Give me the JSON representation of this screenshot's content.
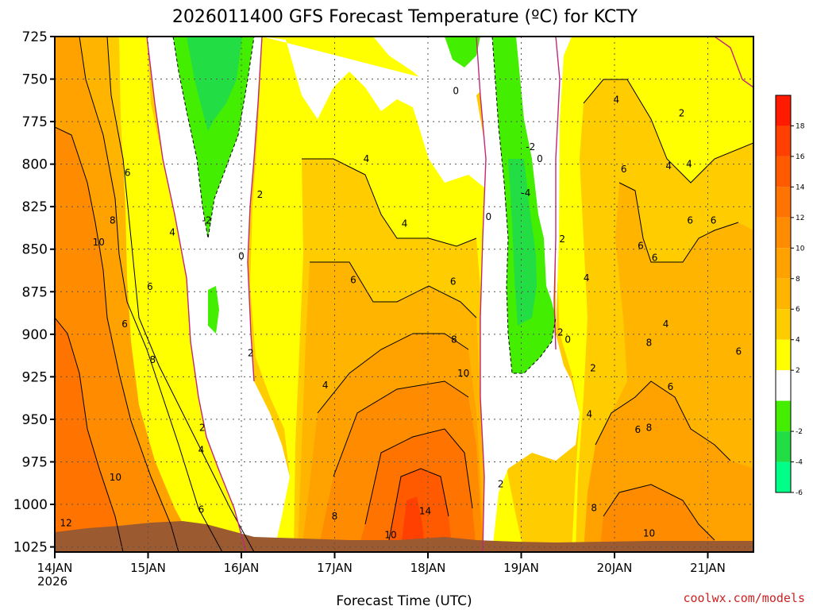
{
  "chart_data": {
    "type": "heatmap",
    "title": "2026011400 GFS Forecast Temperature (ºC) for KCTY",
    "xlabel": "Forecast Time (UTC)",
    "ylabel": "",
    "credit": "coolwx.com/models",
    "y_axis": {
      "ticks": [
        "725",
        "750",
        "775",
        "800",
        "825",
        "850",
        "875",
        "900",
        "925",
        "950",
        "975",
        "1000",
        "1025"
      ],
      "range": [
        725,
        1028
      ],
      "inverted": true
    },
    "x_axis": {
      "ticks": [
        "14JAN",
        "15JAN",
        "16JAN",
        "17JAN",
        "18JAN",
        "19JAN",
        "20JAN",
        "21JAN"
      ],
      "year_label": "2026",
      "range_days": [
        0,
        7.45
      ]
    },
    "grid": true,
    "colorbar": {
      "position": "right",
      "labels": [
        "18",
        "16",
        "14",
        "12",
        "10",
        "8",
        "6",
        "4",
        "2",
        "-2",
        "-4",
        "-6"
      ],
      "bins": [
        {
          "range": [
            18,
            20
          ],
          "color": "#ff1a00"
        },
        {
          "range": [
            16,
            18
          ],
          "color": "#ff4000"
        },
        {
          "range": [
            14,
            16
          ],
          "color": "#ff5a00"
        },
        {
          "range": [
            12,
            14
          ],
          "color": "#ff7300"
        },
        {
          "range": [
            10,
            12
          ],
          "color": "#ff8c00"
        },
        {
          "range": [
            8,
            10
          ],
          "color": "#ffa200"
        },
        {
          "range": [
            6,
            8
          ],
          "color": "#ffb400"
        },
        {
          "range": [
            4,
            6
          ],
          "color": "#ffcc00"
        },
        {
          "range": [
            2,
            4
          ],
          "color": "#ffff00"
        },
        {
          "range": [
            -2,
            2
          ],
          "color": "#ffffff"
        },
        {
          "range": [
            -4,
            -2
          ],
          "color": "#44ee00"
        },
        {
          "range": [
            -6,
            -4
          ],
          "color": "#22dd44"
        },
        {
          "range": [
            -8,
            -6
          ],
          "color": "#00ff88"
        }
      ]
    },
    "contour_labels": [
      {
        "day": 0.12,
        "p": 1011,
        "v": "12"
      },
      {
        "day": 0.65,
        "p": 984,
        "v": "10"
      },
      {
        "day": 0.47,
        "p": 846,
        "v": "10"
      },
      {
        "day": 0.62,
        "p": 833,
        "v": "8"
      },
      {
        "day": 0.78,
        "p": 805,
        "v": "6"
      },
      {
        "day": 0.75,
        "p": 894,
        "v": "6"
      },
      {
        "day": 1.05,
        "p": 915,
        "v": "8"
      },
      {
        "day": 1.02,
        "p": 872,
        "v": "6"
      },
      {
        "day": 1.26,
        "p": 840,
        "v": "4"
      },
      {
        "day": 1.58,
        "p": 955,
        "v": "2"
      },
      {
        "day": 1.57,
        "p": 1003,
        "v": "6"
      },
      {
        "day": 1.57,
        "p": 968,
        "v": "4"
      },
      {
        "day": 1.63,
        "p": 833,
        "v": "-2"
      },
      {
        "day": 2.0,
        "p": 854,
        "v": "0"
      },
      {
        "day": 2.1,
        "p": 911,
        "v": "2"
      },
      {
        "day": 2.2,
        "p": 818,
        "v": "2"
      },
      {
        "day": 2.9,
        "p": 930,
        "v": "4"
      },
      {
        "day": 3.2,
        "p": 868,
        "v": "6"
      },
      {
        "day": 3.34,
        "p": 797,
        "v": "4"
      },
      {
        "day": 3.0,
        "p": 1007,
        "v": "8"
      },
      {
        "day": 3.6,
        "p": 1018,
        "v": "10"
      },
      {
        "day": 3.97,
        "p": 1004,
        "v": "14"
      },
      {
        "day": 3.75,
        "p": 835,
        "v": "4"
      },
      {
        "day": 4.27,
        "p": 869,
        "v": "6"
      },
      {
        "day": 4.28,
        "p": 903,
        "v": "8"
      },
      {
        "day": 4.38,
        "p": 923,
        "v": "10"
      },
      {
        "day": 4.3,
        "p": 757,
        "v": "0"
      },
      {
        "day": 4.65,
        "p": 831,
        "v": "0"
      },
      {
        "day": 4.78,
        "p": 988,
        "v": "2"
      },
      {
        "day": 5.1,
        "p": 790,
        "v": "-2"
      },
      {
        "day": 5.2,
        "p": 797,
        "v": "0"
      },
      {
        "day": 5.05,
        "p": 817,
        "v": "-4"
      },
      {
        "day": 5.44,
        "p": 844,
        "v": "2"
      },
      {
        "day": 5.42,
        "p": 899,
        "v": "2"
      },
      {
        "day": 5.5,
        "p": 903,
        "v": "0"
      },
      {
        "day": 5.7,
        "p": 867,
        "v": "4"
      },
      {
        "day": 5.77,
        "p": 920,
        "v": "2"
      },
      {
        "day": 5.73,
        "p": 947,
        "v": "4"
      },
      {
        "day": 5.78,
        "p": 1002,
        "v": "8"
      },
      {
        "day": 6.02,
        "p": 762,
        "v": "4"
      },
      {
        "day": 6.1,
        "p": 803,
        "v": "6"
      },
      {
        "day": 6.25,
        "p": 956,
        "v": "6"
      },
      {
        "day": 6.28,
        "p": 848,
        "v": "6"
      },
      {
        "day": 6.43,
        "p": 855,
        "v": "6"
      },
      {
        "day": 6.37,
        "p": 905,
        "v": "8"
      },
      {
        "day": 6.37,
        "p": 955,
        "v": "8"
      },
      {
        "day": 6.37,
        "p": 1017,
        "v": "10"
      },
      {
        "day": 6.58,
        "p": 801,
        "v": "4"
      },
      {
        "day": 6.55,
        "p": 894,
        "v": "4"
      },
      {
        "day": 6.6,
        "p": 931,
        "v": "6"
      },
      {
        "day": 6.72,
        "p": 770,
        "v": "2"
      },
      {
        "day": 6.8,
        "p": 800,
        "v": "4"
      },
      {
        "day": 6.81,
        "p": 833,
        "v": "6"
      },
      {
        "day": 7.06,
        "p": 833,
        "v": "6"
      },
      {
        "day": 7.33,
        "p": 910,
        "v": "6"
      }
    ]
  }
}
